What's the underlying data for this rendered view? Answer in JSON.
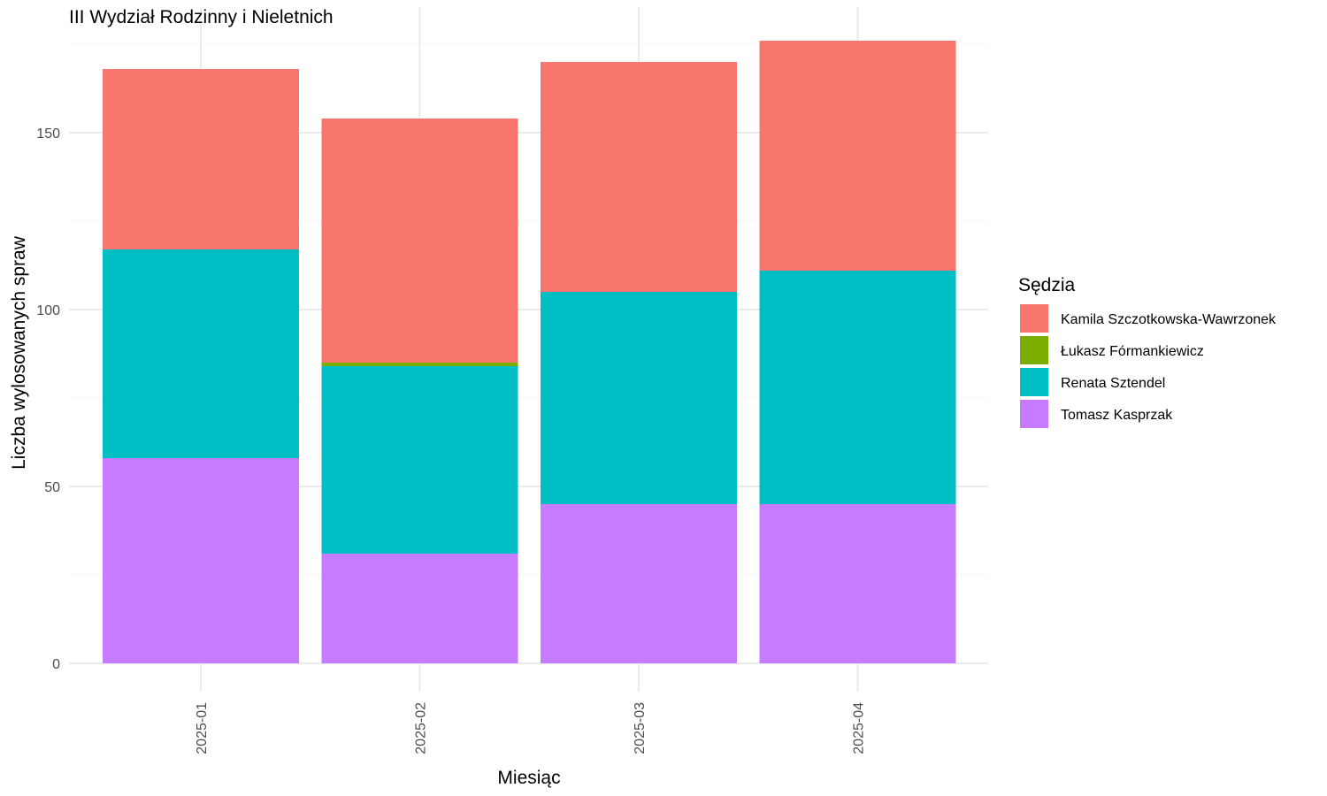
{
  "chart_data": {
    "type": "bar",
    "stacked": true,
    "title": "III Wydział Rodzinny i Nieletnich",
    "xlabel": "Miesiąc",
    "ylabel": "Liczba wylosowanych spraw",
    "categories": [
      "2025-01",
      "2025-02",
      "2025-03",
      "2025-04"
    ],
    "ylim": [
      0,
      176
    ],
    "yticks": [
      0,
      50,
      100,
      150
    ],
    "grid": true,
    "legend": {
      "title": "Sędzia",
      "position": "right"
    },
    "series": [
      {
        "name": "Kamila Szczotkowska-Wawrzonek",
        "color": "#F8766D",
        "values": [
          51,
          69,
          65,
          65
        ]
      },
      {
        "name": "Łukasz Fórmankiewicz",
        "color": "#7CAE00",
        "values": [
          0,
          1,
          0,
          0
        ]
      },
      {
        "name": "Renata Sztendel",
        "color": "#00BFC4",
        "values": [
          59,
          53,
          60,
          66
        ]
      },
      {
        "name": "Tomasz Kasprzak",
        "color": "#C77CFF",
        "values": [
          58,
          31,
          45,
          45
        ]
      }
    ],
    "stack_order_bottom_to_top": [
      "Tomasz Kasprzak",
      "Renata Sztendel",
      "Łukasz Fórmankiewicz",
      "Kamila Szczotkowska-Wawrzonek"
    ]
  }
}
